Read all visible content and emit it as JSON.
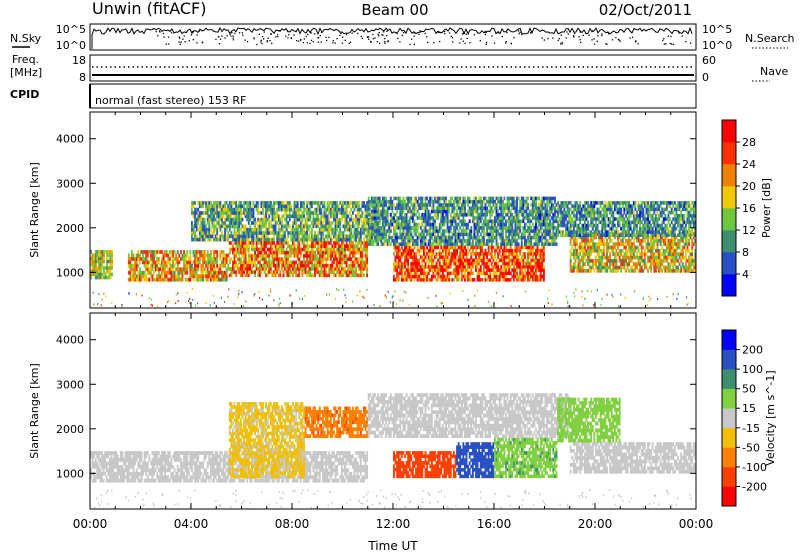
{
  "header": {
    "station": "Unwin (fitACF)",
    "beam": "Beam 00",
    "date": "02/Oct/2011"
  },
  "top_panels": {
    "nsky_label": "N.Sky",
    "nsky_ticks": [
      "10^5",
      "10^0"
    ],
    "nsearch_label": "N.Search",
    "nsearch_ticks": [
      "10^5",
      "10^0"
    ],
    "freq_label": "Freq.",
    "freq_unit": "[MHz]",
    "freq_ticks": [
      "18",
      "8"
    ],
    "nave_label": "Nave",
    "nave_ticks": [
      "60",
      "0"
    ],
    "cpid_label": "CPID",
    "cpid_text": "normal (fast stereo) 153 RF"
  },
  "colors": {
    "power": [
      "#0000ff",
      "#2a50c8",
      "#3c9070",
      "#6cc840",
      "#f0c800",
      "#f08000",
      "#ff3000",
      "#ff0000"
    ],
    "velocity": [
      "#ff0000",
      "#ff4000",
      "#ff8000",
      "#f0c000",
      "#c8c8c8",
      "#80d040",
      "#3c9070",
      "#2850c0",
      "#0000ff"
    ]
  },
  "chart_data": [
    {
      "type": "heatmap",
      "name": "power-panel",
      "ylabel": "Slant Range [km]",
      "xlabel": "",
      "ylim": [
        200,
        4600
      ],
      "xlim": [
        0,
        24
      ],
      "yticks": [
        1000,
        2000,
        3000,
        4000
      ],
      "ytick_labels": [
        "1000",
        "2000",
        "3000",
        "4000"
      ],
      "colorbar": {
        "label": "Power [dB]",
        "ticks": [
          4,
          8,
          12,
          16,
          20,
          24,
          28
        ],
        "tick_labels": [
          "4",
          "8",
          "12",
          "16",
          "20",
          "24",
          "28"
        ],
        "range": [
          0,
          32
        ]
      },
      "bands": [
        {
          "t0": 0.0,
          "t1": 0.9,
          "r0": 850,
          "r1": 1500,
          "level": 16
        },
        {
          "t0": 1.5,
          "t1": 5.5,
          "r0": 800,
          "r1": 1500,
          "level": 20
        },
        {
          "t0": 5.5,
          "t1": 11.0,
          "r0": 900,
          "r1": 1700,
          "level": 22
        },
        {
          "t0": 4.0,
          "t1": 11.5,
          "r0": 1700,
          "r1": 2600,
          "level": 12
        },
        {
          "t0": 12.0,
          "t1": 18.0,
          "r0": 800,
          "r1": 1600,
          "level": 26
        },
        {
          "t0": 11.0,
          "t1": 18.5,
          "r0": 1600,
          "r1": 2700,
          "level": 10
        },
        {
          "t0": 19.0,
          "t1": 24.0,
          "r0": 1000,
          "r1": 1900,
          "level": 18
        },
        {
          "t0": 18.5,
          "t1": 24.0,
          "r0": 1800,
          "r1": 2600,
          "level": 10
        }
      ]
    },
    {
      "type": "heatmap",
      "name": "velocity-panel",
      "ylabel": "Slant Range [km]",
      "xlabel": "Time UT",
      "ylim": [
        200,
        4600
      ],
      "xlim": [
        0,
        24
      ],
      "yticks": [
        1000,
        2000,
        3000,
        4000
      ],
      "ytick_labels": [
        "1000",
        "2000",
        "3000",
        "4000"
      ],
      "xticks": [
        0,
        4,
        8,
        12,
        16,
        20,
        24
      ],
      "xtick_labels": [
        "00:00",
        "04:00",
        "08:00",
        "12:00",
        "16:00",
        "20:00",
        "00:00"
      ],
      "colorbar": {
        "label": "Velocity [m s^-1]",
        "ticks": [
          -200,
          -100,
          -50,
          -15,
          15,
          50,
          100,
          200
        ],
        "tick_labels": [
          "-200",
          "-100",
          "-50",
          "-15",
          "15",
          "50",
          "100",
          "200"
        ]
      },
      "bands": [
        {
          "t0": 0.0,
          "t1": 11.0,
          "r0": 800,
          "r1": 1500,
          "level": 0
        },
        {
          "t0": 5.5,
          "t1": 8.5,
          "r0": 900,
          "r1": 2600,
          "level": -20
        },
        {
          "t0": 8.5,
          "t1": 11.0,
          "r0": 1800,
          "r1": 2500,
          "level": -80
        },
        {
          "t0": 12.0,
          "t1": 14.5,
          "r0": 900,
          "r1": 1500,
          "level": -150
        },
        {
          "t0": 14.5,
          "t1": 16.0,
          "r0": 900,
          "r1": 1700,
          "level": 150
        },
        {
          "t0": 16.0,
          "t1": 18.5,
          "r0": 900,
          "r1": 1800,
          "level": 40
        },
        {
          "t0": 11.0,
          "t1": 19.0,
          "r0": 1800,
          "r1": 2800,
          "level": 0
        },
        {
          "t0": 19.0,
          "t1": 24.0,
          "r0": 1000,
          "r1": 1700,
          "level": 0
        },
        {
          "t0": 18.5,
          "t1": 21.0,
          "r0": 1700,
          "r1": 2700,
          "level": 25
        }
      ]
    }
  ]
}
